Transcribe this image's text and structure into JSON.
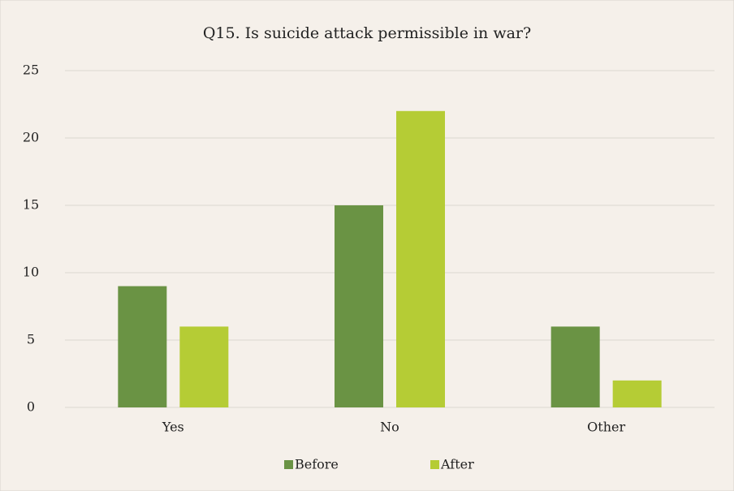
{
  "chart_data": {
    "type": "bar",
    "title": "Q15. Is suicide attack permissible in war?",
    "categories": [
      "Yes",
      "No",
      "Other"
    ],
    "series": [
      {
        "name": "Before",
        "color": "#6a9344",
        "values": [
          9,
          15,
          6
        ]
      },
      {
        "name": "After",
        "color": "#b5cc35",
        "values": [
          6,
          22,
          2
        ]
      }
    ],
    "ylim": [
      0,
      25
    ],
    "yticks": [
      0,
      5,
      10,
      15,
      20,
      25
    ],
    "grid": true,
    "legend": "bottom"
  }
}
